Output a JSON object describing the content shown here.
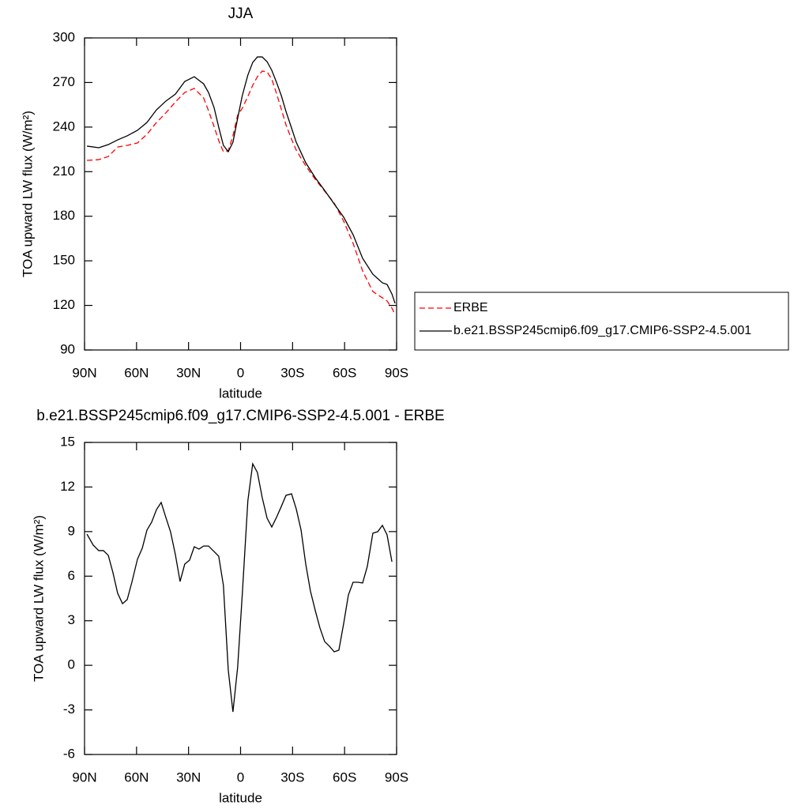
{
  "chart_data": [
    {
      "type": "line",
      "title": "JJA",
      "x_label": "latitude",
      "y_label": "TOA upward LW flux (W/m²)",
      "x": [
        88.6,
        81.8,
        76.3,
        70.9,
        65.4,
        59.5,
        54.0,
        48.5,
        43.1,
        37.6,
        32.2,
        26.7,
        21.3,
        18.5,
        15.3,
        12.6,
        9.9,
        7.1,
        4.4,
        1.7,
        -1.0,
        -4.2,
        -7.0,
        -9.7,
        -12.5,
        -15.3,
        -18.0,
        -20.7,
        -23.5,
        -26.2,
        -29.4,
        -32.1,
        -37.6,
        -43.1,
        -48.5,
        -54.0,
        -59.5,
        -64.9,
        -70.4,
        -76.3,
        -81.8,
        -84.5,
        -87.3,
        -89.1
      ],
      "series": [
        {
          "name": "ERBE",
          "color": "#ff0000",
          "dashed": true,
          "values": [
            217.6,
            218.1,
            220.2,
            226.6,
            227.7,
            229.3,
            235.1,
            243.1,
            249.5,
            256.9,
            263.3,
            266.0,
            259.6,
            251.1,
            240.4,
            230.9,
            223.4,
            224.0,
            234.1,
            247.9,
            252.7,
            260.6,
            268.1,
            273.9,
            277.7,
            277.1,
            272.3,
            262.8,
            252.1,
            241.5,
            231.9,
            224.5,
            213.9,
            204.8,
            196.9,
            188.9,
            176.6,
            161.8,
            143.2,
            129.3,
            125.1,
            123.0,
            118.2,
            113.9
          ]
        },
        {
          "name": "b.e21.BSSP245cmip6.f09_g17.CMIP6-SSP2-4.5.001",
          "color": "#000000",
          "dashed": false,
          "values": [
            227.2,
            226.1,
            228.2,
            231.4,
            234.1,
            237.8,
            243.1,
            251.6,
            257.5,
            262.2,
            270.7,
            273.9,
            269.1,
            263.3,
            253.2,
            239.9,
            227.7,
            223.4,
            229.8,
            245.8,
            261.2,
            275.0,
            283.5,
            287.2,
            287.2,
            284.0,
            278.2,
            270.2,
            261.2,
            250.5,
            239.4,
            229.8,
            216.0,
            205.9,
            197.4,
            188.3,
            179.3,
            167.6,
            151.7,
            141.0,
            135.2,
            134.1,
            127.7,
            121.4
          ]
        }
      ],
      "xlim": [
        90,
        -90
      ],
      "xticks": [
        {
          "value": 90,
          "label": "90N"
        },
        {
          "value": 60,
          "label": "60N"
        },
        {
          "value": 30,
          "label": "30N"
        },
        0,
        {
          "value": -30,
          "label": "30S"
        },
        {
          "value": -60,
          "label": "60S"
        },
        {
          "value": -90,
          "label": "90S"
        }
      ],
      "ylim": [
        90,
        300
      ],
      "yticks": [
        90,
        120,
        150,
        180,
        210,
        240,
        270,
        300
      ],
      "legend": "right"
    },
    {
      "type": "line",
      "title": "b.e21.BSSP245cmip6.f09_g17.CMIP6-SSP2-4.5.001 - ERBE",
      "x_label": "latitude",
      "y_label": "TOA upward LW flux (W/m²)",
      "x": [
        88.6,
        85.0,
        81.8,
        79.1,
        76.3,
        73.6,
        70.9,
        68.1,
        65.4,
        62.7,
        59.5,
        56.7,
        54.0,
        51.3,
        48.5,
        45.8,
        43.1,
        40.4,
        37.6,
        34.9,
        32.2,
        29.4,
        26.7,
        24.0,
        21.3,
        18.5,
        15.3,
        12.6,
        9.9,
        7.1,
        4.4,
        1.7,
        -1.0,
        -4.2,
        -7.0,
        -9.7,
        -12.5,
        -15.3,
        -18.0,
        -20.7,
        -23.5,
        -26.2,
        -29.4,
        -32.1,
        -34.9,
        -37.6,
        -40.3,
        -43.1,
        -45.8,
        -48.5,
        -51.3,
        -54.0,
        -56.7,
        -59.5,
        -62.2,
        -64.9,
        -67.7,
        -70.4,
        -73.1,
        -76.3,
        -79.1,
        -81.8,
        -84.5,
        -87.3
      ],
      "values": [
        8.83,
        8.09,
        7.72,
        7.72,
        7.4,
        6.23,
        4.85,
        4.15,
        4.42,
        5.59,
        7.13,
        7.88,
        9.1,
        9.63,
        10.48,
        10.96,
        9.95,
        8.99,
        7.45,
        5.64,
        6.81,
        7.08,
        7.98,
        7.82,
        8.03,
        8.03,
        7.66,
        7.34,
        5.38,
        -0.31,
        -3.13,
        -0.15,
        4.79,
        11.07,
        13.56,
        12.98,
        11.28,
        9.9,
        9.31,
        9.95,
        10.69,
        11.44,
        11.54,
        10.53,
        9.1,
        6.81,
        5.0,
        3.68,
        2.51,
        1.6,
        1.28,
        0.91,
        1.02,
        2.83,
        4.74,
        5.59,
        5.59,
        5.54,
        6.65,
        8.89,
        8.99,
        9.42,
        8.78,
        6.97
      ],
      "color": "#000000",
      "xlim": [
        90,
        -90
      ],
      "xticks": [
        {
          "value": 90,
          "label": "90N"
        },
        {
          "value": 60,
          "label": "60N"
        },
        {
          "value": 30,
          "label": "30N"
        },
        0,
        {
          "value": -30,
          "label": "30S"
        },
        {
          "value": -60,
          "label": "60S"
        },
        {
          "value": -90,
          "label": "90S"
        }
      ],
      "ylim": [
        -6,
        15
      ],
      "yticks": [
        -6,
        -3,
        0,
        3,
        6,
        9,
        12,
        15
      ]
    }
  ]
}
